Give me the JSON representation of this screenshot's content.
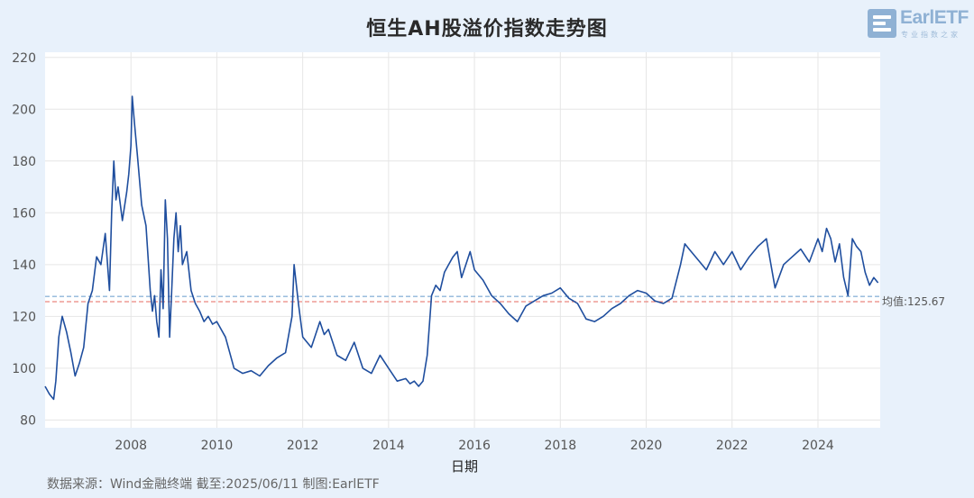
{
  "title": "恒生AH股溢价指数走势图",
  "logo": {
    "name": "EarlETF",
    "sub": "专业指数之家"
  },
  "source_text": "数据来源：Wind金融终端 截至:2025/06/11 制图:EarlETF",
  "chart_data": {
    "type": "line",
    "title": "恒生AH股溢价指数走势图",
    "xlabel": "日期",
    "ylabel": "",
    "xlim": [
      2006.0,
      2025.45
    ],
    "ylim": [
      77,
      222
    ],
    "yticks": [
      80,
      100,
      120,
      140,
      160,
      180,
      200,
      220
    ],
    "xticks": [
      2008,
      2010,
      2012,
      2014,
      2016,
      2018,
      2020,
      2022,
      2024
    ],
    "grid": true,
    "colors": {
      "line": "#1f4e9e",
      "mean_line": "#e9877f",
      "ref_line": "#8fb6d9",
      "mean_label": "#555555"
    },
    "series": [
      {
        "values_x": [
          2006.0,
          2006.1,
          2006.2,
          2006.25,
          2006.32,
          2006.4,
          2006.5,
          2006.6,
          2006.7,
          2006.8,
          2006.9,
          2007.0,
          2007.1,
          2007.2,
          2007.3,
          2007.4,
          2007.5,
          2007.55,
          2007.6,
          2007.65,
          2007.7,
          2007.8,
          2007.9,
          2007.95,
          2008.0,
          2008.03,
          2008.08,
          2008.15,
          2008.25,
          2008.35,
          2008.45,
          2008.5,
          2008.55,
          2008.6,
          2008.65,
          2008.7,
          2008.75,
          2008.8,
          2008.85,
          2008.9,
          2008.95,
          2009.0,
          2009.05,
          2009.1,
          2009.15,
          2009.2,
          2009.3,
          2009.4,
          2009.5,
          2009.6,
          2009.7,
          2009.8,
          2009.9,
          2010.0,
          2010.2,
          2010.4,
          2010.6,
          2010.8,
          2011.0,
          2011.2,
          2011.4,
          2011.6,
          2011.75,
          2011.8,
          2011.9,
          2012.0,
          2012.2,
          2012.4,
          2012.5,
          2012.6,
          2012.8,
          2013.0,
          2013.2,
          2013.4,
          2013.6,
          2013.8,
          2014.0,
          2014.2,
          2014.4,
          2014.5,
          2014.6,
          2014.7,
          2014.8,
          2014.9,
          2015.0,
          2015.1,
          2015.2,
          2015.3,
          2015.4,
          2015.5,
          2015.6,
          2015.7,
          2015.8,
          2015.9,
          2016.0,
          2016.2,
          2016.4,
          2016.6,
          2016.8,
          2017.0,
          2017.2,
          2017.4,
          2017.6,
          2017.8,
          2018.0,
          2018.2,
          2018.4,
          2018.6,
          2018.8,
          2019.0,
          2019.2,
          2019.4,
          2019.6,
          2019.8,
          2020.0,
          2020.2,
          2020.4,
          2020.6,
          2020.8,
          2020.9,
          2021.0,
          2021.2,
          2021.4,
          2021.6,
          2021.8,
          2022.0,
          2022.2,
          2022.4,
          2022.6,
          2022.8,
          2023.0,
          2023.2,
          2023.4,
          2023.6,
          2023.8,
          2024.0,
          2024.1,
          2024.2,
          2024.3,
          2024.4,
          2024.5,
          2024.6,
          2024.7,
          2024.8,
          2024.9,
          2025.0,
          2025.1,
          2025.2,
          2025.3,
          2025.4
        ],
        "values": [
          93,
          90,
          88,
          95,
          112,
          120,
          114,
          106,
          97,
          102,
          108,
          125,
          130,
          143,
          140,
          152,
          130,
          160,
          180,
          165,
          170,
          157,
          168,
          175,
          186,
          205,
          195,
          182,
          163,
          155,
          130,
          122,
          128,
          118,
          112,
          138,
          123,
          165,
          150,
          112,
          130,
          150,
          160,
          145,
          155,
          140,
          145,
          130,
          125,
          122,
          118,
          120,
          117,
          118,
          112,
          100,
          98,
          99,
          97,
          101,
          104,
          106,
          120,
          140,
          125,
          112,
          108,
          118,
          113,
          115,
          105,
          103,
          110,
          100,
          98,
          105,
          100,
          95,
          96,
          94,
          95,
          93,
          95,
          105,
          128,
          132,
          130,
          137,
          140,
          143,
          145,
          135,
          140,
          145,
          138,
          134,
          128,
          125,
          121,
          118,
          124,
          126,
          128,
          129,
          131,
          127,
          125,
          119,
          118,
          120,
          123,
          125,
          128,
          130,
          129,
          126,
          125,
          127,
          140,
          148,
          146,
          142,
          138,
          145,
          140,
          145,
          138,
          143,
          147,
          150,
          131,
          140,
          143,
          146,
          141,
          150,
          145,
          154,
          150,
          141,
          148,
          135,
          128,
          150,
          147,
          145,
          137,
          132,
          135,
          133
        ]
      }
    ],
    "mean": 125.67,
    "mean_label": "均值:125.67",
    "ref_level": 127.7
  }
}
